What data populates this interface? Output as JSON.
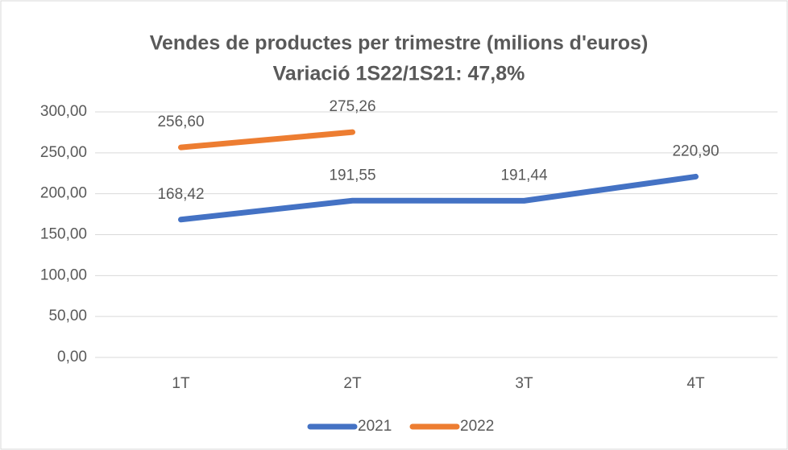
{
  "chart_data": {
    "type": "line",
    "title": "Vendes de productes per trimestre (milions d'euros)",
    "subtitle": "Variació 1S22/1S21: 47,8%",
    "categories": [
      "1T",
      "2T",
      "3T",
      "4T"
    ],
    "series": [
      {
        "name": "2021",
        "color": "#4472c4",
        "values": [
          168.42,
          191.55,
          191.44,
          220.9
        ],
        "value_labels": [
          "168,42",
          "191,55",
          "191,44",
          "220,90"
        ]
      },
      {
        "name": "2022",
        "color": "#ed7d31",
        "values": [
          256.6,
          275.26,
          null,
          null
        ],
        "value_labels": [
          "256,60",
          "275,26",
          null,
          null
        ]
      }
    ],
    "ylim": [
      0,
      300
    ],
    "yticks": [
      {
        "value": 0,
        "label": "0,00"
      },
      {
        "value": 50,
        "label": "50,00"
      },
      {
        "value": 100,
        "label": "100,00"
      },
      {
        "value": 150,
        "label": "150,00"
      },
      {
        "value": 200,
        "label": "200,00"
      },
      {
        "value": 250,
        "label": "250,00"
      },
      {
        "value": 300,
        "label": "300,00"
      }
    ],
    "grid": true,
    "legend": "bottom"
  }
}
